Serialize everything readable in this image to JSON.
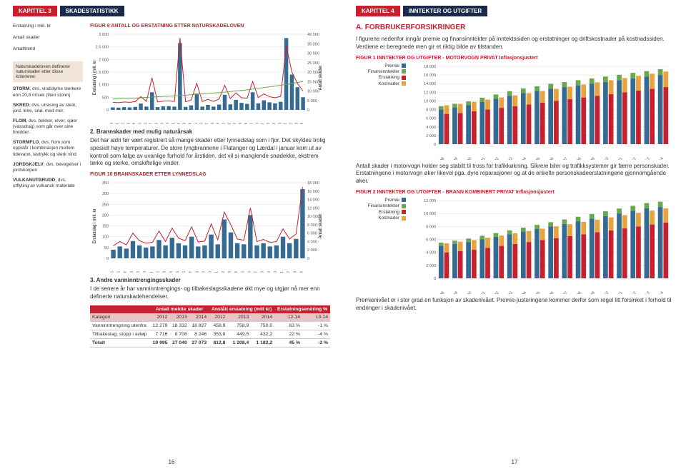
{
  "left": {
    "chapter": "KAPITTEL 3",
    "title": "SKADESTATISTIKK",
    "pageNum": "16",
    "fig9": "FIGUR 9 ANTALL OG ERSTATNING ETTER NATURSKADELOVEN",
    "fig10": "FIGUR 10 BRANNSKADER ETTER LYNNEDSLAG",
    "legendHead1": "Erstatning i mill. kr",
    "legendHead2": "Antall skader",
    "legendHead3": "Antalltrend",
    "defBox": "Naturskadeloven definerer naturskader etter disse kriteriene:",
    "terms": [
      {
        "t": "STORM",
        "d": ", dvs. vindstyrke sterkere enn 20,8 m/sek (liten storm)"
      },
      {
        "t": "SKRED",
        "d": ", dvs. utrasing av stein, jord, leire, snø, med mer."
      },
      {
        "t": "FLOM",
        "d": ", dvs. bekker, elver, sjøer (vassdrag) som går over sine bredder."
      },
      {
        "t": "STORMFLO",
        "d": ", dvs. flom som oppstår i kombinasjon mellom tidevann, lavtrykk og sterk vind"
      },
      {
        "t": "JORDSKJELV",
        "d": ", dvs. bevegelser i jordskorpen"
      },
      {
        "t": "VULKANUTBRUDD",
        "d": ", dvs. utflyting av vulkansk materiale"
      }
    ],
    "sub2": "2. Brannskader med mulig naturårsak",
    "para2": "Det har aldri før vært registrert så mange skader etter lynnedslag som i fjor. Det skyldes trolig spesielt høye temperaturer. De store lyngbrannene i Flatanger og Lærdal i januar kom ut av kontroll som følge av uvanlige forhold for årstiden, det vil si manglende snødekke, ekstrem tørke og sterke, omskiftelige vinder.",
    "sub3": "3. Andre vanninntrengingsskader",
    "para3": "I de senere år har vanninntrengings- og tilbakeslagsskadene økt mye og utgjør nå mer enn definerte naturskadehendelser.",
    "chart9": {
      "type": "combo-bar-line",
      "yLeftMax": 3000,
      "yLeftStep": 500,
      "yRightMax": 40000,
      "yRightStep": 5000,
      "years": [
        "1980",
        "1981",
        "1982",
        "1983",
        "1984",
        "1985",
        "1986",
        "1987",
        "1988",
        "1989",
        "1990",
        "1991",
        "1992",
        "1993",
        "1994",
        "1995",
        "1996",
        "1997",
        "1998",
        "1999",
        "2000",
        "2001",
        "2002",
        "2003",
        "2004",
        "2005",
        "2006",
        "2007",
        "2008",
        "2009",
        "2010",
        "2011",
        "2012",
        "2013",
        "2014"
      ],
      "bars": [
        100,
        90,
        110,
        100,
        120,
        250,
        130,
        700,
        110,
        140,
        150,
        130,
        2650,
        120,
        180,
        650,
        130,
        200,
        130,
        210,
        600,
        220,
        400,
        280,
        240,
        700,
        260,
        380,
        300,
        260,
        320,
        2850,
        1400,
        900,
        500
      ],
      "line1": [
        4000,
        3800,
        4200,
        4000,
        4400,
        7000,
        4500,
        17000,
        4200,
        4600,
        4800,
        4400,
        38000,
        4300,
        5200,
        14000,
        4400,
        5600,
        4500,
        5800,
        13000,
        6000,
        9000,
        6400,
        6200,
        15000,
        6500,
        8500,
        7000,
        6400,
        7200,
        34000,
        20000,
        14000,
        10000
      ],
      "line2": [
        5800,
        5900,
        6000,
        6100,
        6200,
        6400,
        6600,
        6800,
        7000,
        7100,
        7200,
        7400,
        7600,
        7800,
        8000,
        8300,
        8500,
        8700,
        8900,
        9100,
        9400,
        9700,
        10000,
        10300,
        10600,
        11000,
        11400,
        11800,
        12200,
        12600,
        13000,
        13500,
        14000,
        14500,
        15000
      ],
      "barColor": "#356a93",
      "line1Color": "#c8202f",
      "line2Color": "#6aa84f",
      "yLeftLabel": "Erstatning i mill. kr",
      "yRightLabel": "Antall skader"
    },
    "chart10": {
      "type": "combo-bar-line",
      "yLeftMax": 350,
      "yLeftStep": 50,
      "yRightMax": 18000,
      "yRightStep": 2000,
      "years": [
        "1985",
        "1986",
        "1987",
        "1988",
        "1989",
        "1990",
        "1991",
        "1992",
        "1993",
        "1994",
        "1995",
        "1996",
        "1997",
        "1998",
        "1999",
        "2000",
        "2001",
        "2002",
        "2003",
        "2004",
        "2005",
        "2006",
        "2007",
        "2008",
        "2009",
        "2010",
        "2011",
        "2012",
        "2013",
        "2014"
      ],
      "bars": [
        40,
        55,
        45,
        80,
        60,
        50,
        55,
        85,
        60,
        95,
        70,
        60,
        100,
        55,
        60,
        110,
        65,
        180,
        120,
        70,
        65,
        200,
        60,
        70,
        55,
        60,
        100,
        70,
        90,
        320
      ],
      "line1": [
        3000,
        4000,
        3200,
        6000,
        4200,
        3600,
        3800,
        6500,
        4000,
        7200,
        4800,
        4200,
        7500,
        3900,
        4100,
        8200,
        4400,
        11000,
        8000,
        4600,
        4300,
        12000,
        4000,
        4500,
        3800,
        4000,
        7000,
        4600,
        5800,
        17000
      ],
      "barColor": "#356a93",
      "line1Color": "#c8202f",
      "yLeftLabel": "Erstatning i mill. kr",
      "yRightLabel": "Antall skader"
    },
    "table": {
      "groupHeaders": [
        "Antall meldte skader",
        "Anslått erstatning (mill kr)",
        "Erstatningsendring %"
      ],
      "cols": [
        "Kategori",
        "2012",
        "2013",
        "2014",
        "2012",
        "2013",
        "2014",
        "12-14",
        "13-14"
      ],
      "rows": [
        [
          "Vanninntrengning utenfra",
          "12 279",
          "18 332",
          "18 827",
          "458,9",
          "758,9",
          "750,0",
          "63 %",
          "-1 %"
        ],
        [
          "Tilbakeslag, stopp i avløp",
          "7 716",
          "8 708",
          "8 246",
          "353,8",
          "449,5",
          "432,2",
          "22 %",
          "-4 %"
        ],
        [
          "Totalt",
          "19 995",
          "27 040",
          "27 073",
          "812,8",
          "1 208,4",
          "1 182,2",
          "45 %",
          "-2 %"
        ]
      ]
    }
  },
  "right": {
    "chapter": "KAPITTEL 4",
    "title": "INNTEKTER OG UTGIFTER",
    "pageNum": "17",
    "sectionA": "A. FORBRUKERFORSIKRINGER",
    "intro": "I figurene nedenfor inngår premie og finansinntekter på inntektssiden og erstatninger og driftskostnader på kostnadssiden. Verdiene er beregnede men gir et riktig bilde av tilstanden.",
    "fig1": "FIGUR 1 INNTEKTER OG UTGIFTER - MOTORVOGN PRIVAT Inflasjonsjustert",
    "fig2": "FIGUR 2 INNTEKTER OG UTGIFTER - BRANN KOMBINERT PRIVAT Inflasjonsjustert",
    "legend": [
      "Premie",
      "Finansinntekter",
      "Erstatning",
      "Kostnader"
    ],
    "legendColors": [
      "#356a93",
      "#6aa84f",
      "#c8202f",
      "#e8a33d"
    ],
    "para1": "Antall skader i motorvogn holder seg stabilt til tross for trafikkøkning. Sikrere biler og trafikksystemer gir færre personskader. Erstatningene i motorvogn øker likevel pga. dyre reparasjoner og at de enkelte personskadeerstatningene gjennomgående øker.",
    "para2": "Premienivået er i stor grad en funksjon av skadenivået. Premie-justeringene kommer derfor som regel litt forsinket i forhold til endringer i skadenivået.",
    "chart1": {
      "type": "stacked-bar-pair",
      "yMax": 18000,
      "yStep": 2000,
      "years": [
        "1998",
        "1999",
        "2000",
        "2001",
        "2002",
        "2003",
        "2004",
        "2005",
        "2006",
        "2007",
        "2008",
        "2009",
        "2010",
        "2011",
        "2012",
        "2013",
        "2014"
      ],
      "incA": [
        8000,
        8500,
        9000,
        9800,
        10500,
        11200,
        11800,
        12300,
        12800,
        13200,
        13600,
        14000,
        14400,
        14800,
        15200,
        15600,
        16000
      ],
      "incB": [
        800,
        850,
        900,
        950,
        1000,
        1050,
        1100,
        1100,
        1150,
        1150,
        1200,
        1200,
        1250,
        1250,
        1300,
        1300,
        1350
      ],
      "expA": [
        7000,
        7200,
        7600,
        8000,
        8400,
        8800,
        9200,
        9600,
        10000,
        10400,
        10800,
        11200,
        11600,
        12000,
        12400,
        12800,
        13200
      ],
      "expB": [
        2000,
        2100,
        2200,
        2300,
        2400,
        2500,
        2600,
        2700,
        2800,
        2900,
        3000,
        3100,
        3200,
        3300,
        3400,
        3500,
        3600
      ]
    },
    "chart2": {
      "type": "stacked-bar-pair",
      "yMax": 12000,
      "yStep": 2000,
      "years": [
        "1998",
        "1999",
        "2000",
        "2001",
        "2002",
        "2003",
        "2004",
        "2005",
        "2006",
        "2007",
        "2008",
        "2009",
        "2010",
        "2011",
        "2012",
        "2013",
        "2014"
      ],
      "incA": [
        5000,
        5300,
        5600,
        6000,
        6400,
        6800,
        7200,
        7600,
        8000,
        8400,
        8800,
        9200,
        9600,
        10000,
        10400,
        10800,
        11000
      ],
      "incB": [
        500,
        520,
        540,
        560,
        580,
        600,
        620,
        640,
        660,
        680,
        700,
        720,
        740,
        760,
        780,
        800,
        820
      ],
      "expA": [
        4000,
        4200,
        4400,
        4700,
        5000,
        5300,
        5600,
        5900,
        6200,
        6500,
        6800,
        7100,
        7400,
        7700,
        8000,
        8300,
        8600
      ],
      "expB": [
        1400,
        1450,
        1500,
        1550,
        1600,
        1650,
        1700,
        1750,
        1800,
        1850,
        1900,
        1950,
        2000,
        2050,
        2100,
        2150,
        2200
      ]
    }
  }
}
